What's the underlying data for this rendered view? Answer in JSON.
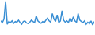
{
  "chart_data": {
    "type": "line",
    "color": "#3a8fd4",
    "tick_labels": false,
    "grid": false,
    "ylim": [
      0,
      100
    ],
    "values": [
      40,
      35,
      45,
      98,
      30,
      38,
      35,
      40,
      33,
      38,
      36,
      42,
      35,
      30,
      38,
      40,
      34,
      32,
      36,
      42,
      38,
      35,
      55,
      40,
      36,
      33,
      38,
      35,
      42,
      48,
      40,
      36,
      62,
      45,
      38,
      58,
      35,
      40,
      70,
      42,
      36,
      40,
      35,
      48,
      38,
      52,
      40,
      36,
      62,
      42,
      38,
      35,
      40,
      30,
      36,
      32,
      40,
      28,
      38
    ]
  }
}
